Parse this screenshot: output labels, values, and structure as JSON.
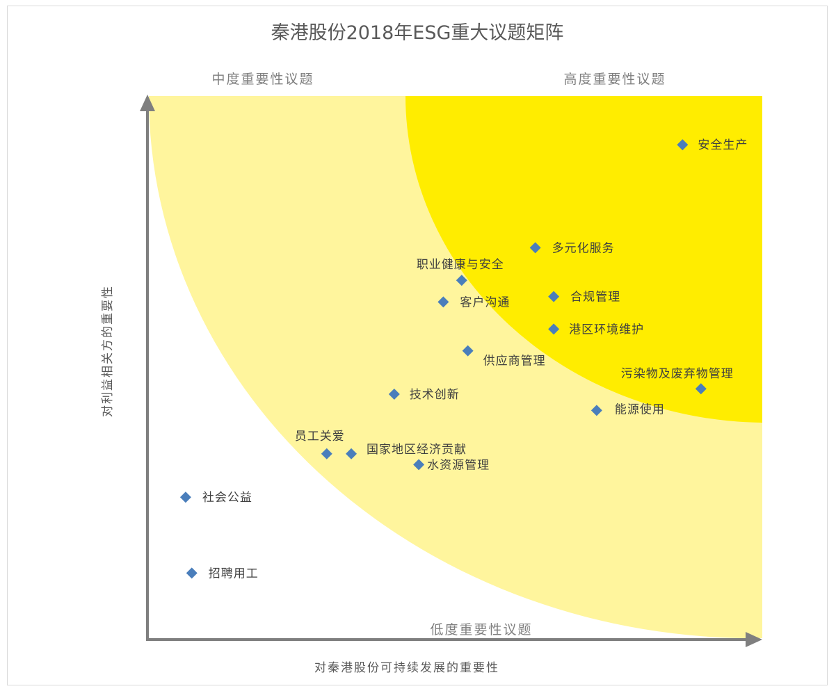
{
  "chart_data": {
    "type": "scatter",
    "title": "秦港股份2018年ESG重大议题矩阵",
    "xlabel": "对秦港股份可持续发展的重要性",
    "ylabel": "对利益相关方的重要性",
    "zones": {
      "medium": "中度重要性议题",
      "high": "高度重要性议题",
      "low": "低度重要性议题"
    },
    "xlim": [
      0,
      100
    ],
    "ylim": [
      0,
      100
    ],
    "points": [
      {
        "label": "安全生产",
        "x": 87,
        "y": 91
      },
      {
        "label": "多元化服务",
        "x": 63,
        "y": 72
      },
      {
        "label": "职业健康与安全",
        "x": 51,
        "y": 66
      },
      {
        "label": "合规管理",
        "x": 66,
        "y": 63
      },
      {
        "label": "客户沟通",
        "x": 48,
        "y": 62
      },
      {
        "label": "港区环境维护",
        "x": 66,
        "y": 57
      },
      {
        "label": "供应商管理",
        "x": 52,
        "y": 53
      },
      {
        "label": "污染物及废弃物管理",
        "x": 90,
        "y": 46
      },
      {
        "label": "技术创新",
        "x": 40,
        "y": 45
      },
      {
        "label": "能源使用",
        "x": 73,
        "y": 42
      },
      {
        "label": "员工关爱",
        "x": 29,
        "y": 34
      },
      {
        "label": "国家地区经济贡献",
        "x": 33,
        "y": 34
      },
      {
        "label": "水资源管理",
        "x": 44,
        "y": 32
      },
      {
        "label": "社会公益",
        "x": 6,
        "y": 26
      },
      {
        "label": "招聘用工",
        "x": 7,
        "y": 12
      }
    ],
    "colors": {
      "marker": "#4a7ebb",
      "zone_medium": "#fff59d",
      "zone_high": "#ffed00",
      "axis": "#7f7f7f",
      "title": "#595959",
      "label": "#404040"
    }
  }
}
